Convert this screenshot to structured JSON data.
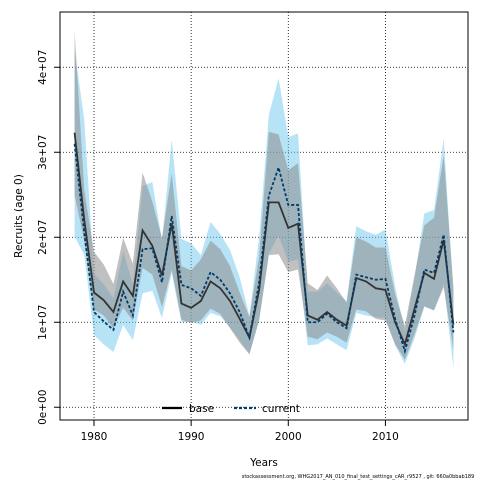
{
  "chart_data": {
    "type": "line",
    "xlabel": "Years",
    "ylabel": "Recruits (age 0)",
    "xlim": [
      1976.5,
      2018.5
    ],
    "ylim": [
      -1500000,
      46500000
    ],
    "grid": true,
    "grid_style": "dotted",
    "legend_position": "bottom-center",
    "x_ticks": [
      1980,
      1990,
      2000,
      2010
    ],
    "y_ticks": [
      0,
      10000000,
      20000000,
      30000000,
      40000000
    ],
    "y_tick_labels": [
      "0e+00",
      "1e+07",
      "2e+07",
      "3e+07",
      "4e+07"
    ],
    "x": [
      1978,
      1979,
      1980,
      1981,
      1982,
      1983,
      1984,
      1985,
      1986,
      1987,
      1988,
      1989,
      1990,
      1991,
      1992,
      1993,
      1994,
      1995,
      1996,
      1997,
      1998,
      1999,
      2000,
      2001,
      2002,
      2003,
      2004,
      2005,
      2006,
      2007,
      2008,
      2009,
      2010,
      2011,
      2012,
      2013,
      2014,
      2015,
      2016,
      2017
    ],
    "series": [
      {
        "name": "base",
        "color": "#333333",
        "band_color": "#8c8c8c",
        "line_style": "solid",
        "values": [
          32300000,
          22000000,
          13500000,
          12600000,
          11200000,
          14800000,
          13100000,
          20800000,
          19000000,
          15500000,
          21600000,
          12200000,
          11700000,
          12500000,
          14800000,
          14000000,
          12500000,
          10400000,
          8200000,
          13800000,
          24100000,
          24100000,
          21100000,
          21600000,
          10800000,
          10300000,
          11200000,
          10300000,
          9600000,
          15200000,
          14800000,
          14000000,
          13800000,
          10000000,
          7400000,
          11600000,
          15800000,
          15100000,
          19700000,
          9700000
        ],
        "lower": [
          25000000,
          19500000,
          11500000,
          10800000,
          9300000,
          11700000,
          10200000,
          16400000,
          15600000,
          11800000,
          16200000,
          10300000,
          9900000,
          10200000,
          11600000,
          11000000,
          9300000,
          7600000,
          6200000,
          10200000,
          17900000,
          18000000,
          15900000,
          16200000,
          8300000,
          8000000,
          8800000,
          8300000,
          7600000,
          11500000,
          11300000,
          10400000,
          10200000,
          7400000,
          5600000,
          8600000,
          11900000,
          11400000,
          14100000,
          6800000
        ],
        "upper": [
          44300000,
          25500000,
          18300000,
          16800000,
          14500000,
          19900000,
          16900000,
          27600000,
          24200000,
          19900000,
          27500000,
          16600000,
          16100000,
          17400000,
          19600000,
          18600000,
          16600000,
          13500000,
          10600000,
          17700000,
          32400000,
          32100000,
          27900000,
          28700000,
          14600000,
          13800000,
          15500000,
          14000000,
          12300000,
          20000000,
          19500000,
          18800000,
          18800000,
          13300000,
          9600000,
          15600000,
          21400000,
          22300000,
          29600000,
          14100000
        ]
      },
      {
        "name": "current",
        "color": "#003c6b",
        "band_color": "#6fc7ee",
        "line_style": "dashed",
        "values": [
          31000000,
          20500000,
          11200000,
          10100000,
          9100000,
          13600000,
          10800000,
          18600000,
          18700000,
          14700000,
          22500000,
          14400000,
          14000000,
          13100000,
          15900000,
          15000000,
          13400000,
          11200000,
          8200000,
          14700000,
          24900000,
          28200000,
          23800000,
          23800000,
          10000000,
          10000000,
          11000000,
          10000000,
          9300000,
          15600000,
          15300000,
          15000000,
          15100000,
          10400000,
          6600000,
          10800000,
          16200000,
          15800000,
          20300000,
          8800000
        ],
        "lower": [
          20100000,
          17900000,
          8500000,
          7400000,
          6500000,
          9700000,
          7900000,
          13400000,
          13700000,
          10500000,
          15800000,
          10000000,
          10100000,
          9700000,
          11100000,
          10700000,
          9400000,
          7900000,
          6300000,
          10300000,
          18100000,
          20200000,
          17100000,
          17400000,
          7300000,
          7400000,
          8100000,
          7400000,
          6700000,
          11100000,
          10800000,
          10600000,
          10500000,
          7300000,
          5100000,
          8100000,
          11800000,
          11400000,
          14500000,
          4600000
        ],
        "upper": [
          42100000,
          33800000,
          15700000,
          14500000,
          12800000,
          18300000,
          14500000,
          26000000,
          26500000,
          19600000,
          31500000,
          19800000,
          19300000,
          17900000,
          21800000,
          20400000,
          18500000,
          15300000,
          10800000,
          20000000,
          34400000,
          38700000,
          31800000,
          32200000,
          13600000,
          13600000,
          14600000,
          13500000,
          12500000,
          21300000,
          20700000,
          20300000,
          20900000,
          14200000,
          8900000,
          15200000,
          22800000,
          23200000,
          31600000,
          13400000
        ]
      }
    ]
  },
  "footer": "stockassessment.org,  WHG2017_AN_010_final_test_settings_cAR_r9527 ,  git: 660a0bbab189"
}
